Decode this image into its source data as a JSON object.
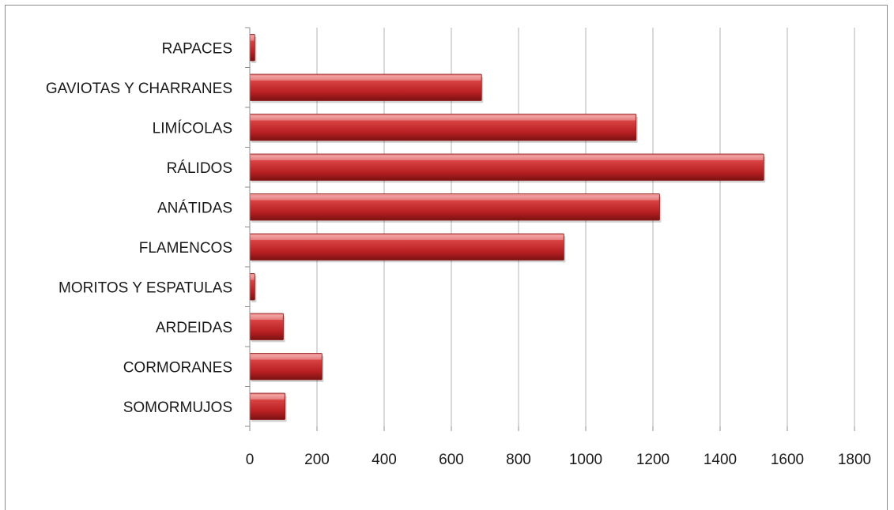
{
  "chart_data": {
    "type": "bar",
    "orientation": "horizontal",
    "categories": [
      "SOMORMUJOS",
      "CORMORANES",
      "ARDEIDAS",
      "MORITOS Y ESPATULAS",
      "FLAMENCOS",
      "ANÁTIDAS",
      "RÁLIDOS",
      "LIMÍCOLAS",
      "GAVIOTAS Y CHARRANES",
      "RAPACES"
    ],
    "values": [
      105,
      215,
      100,
      15,
      935,
      1220,
      1530,
      1150,
      690,
      15
    ],
    "xlim": [
      0,
      1800
    ],
    "xticks": [
      0,
      200,
      400,
      600,
      800,
      1000,
      1200,
      1400,
      1600,
      1800
    ],
    "grid": "vertical",
    "legend": "none",
    "colors": {
      "bar_light": "#e86a6a",
      "bar_mid": "#c9292b",
      "bar_dark": "#7a1212",
      "grid": "#b3b3b3",
      "axis": "#8c8c8c"
    }
  }
}
